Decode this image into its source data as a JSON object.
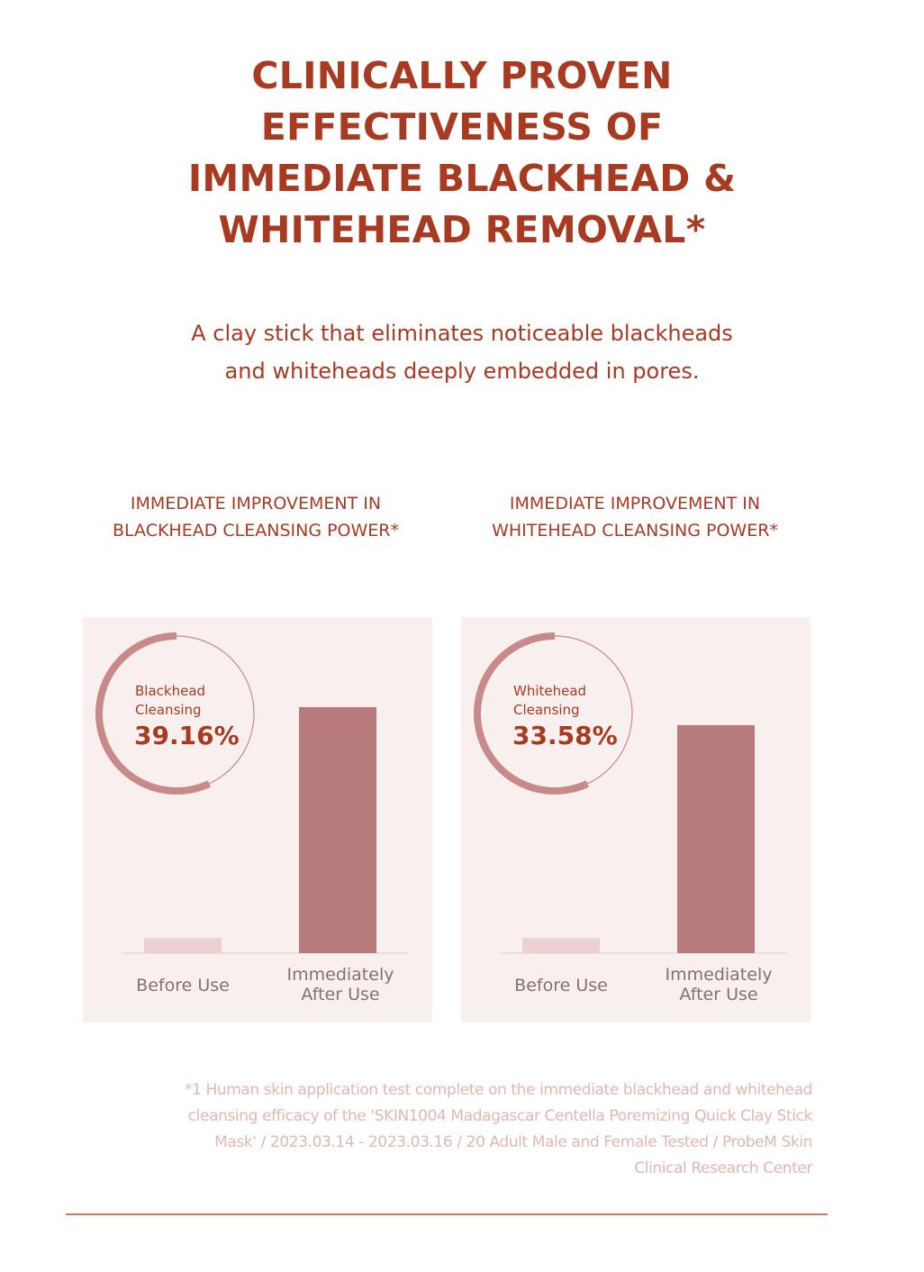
{
  "headline": {
    "lines": [
      "CLINICALLY PROVEN",
      "EFFECTIVENESS OF",
      "IMMEDIATE BLACKHEAD &",
      "WHITEHEAD REMOVAL*"
    ]
  },
  "subhead": {
    "lines": [
      "A clay stick that eliminates noticeable blackheads",
      "and whiteheads deeply embedded in pores."
    ]
  },
  "colors": {
    "accent": "#a83a22",
    "panel_bg": "#f8f0ef",
    "bar_after": "#b87b7b",
    "bar_before": "#ecd1d1",
    "ring": "#c98989",
    "footnote": "#e3b7b1",
    "rule": "#d9775e"
  },
  "chart_data": [
    {
      "type": "bar",
      "title_lines": [
        "IMMEDIATE IMPROVEMENT IN",
        "BLACKHEAD CLEANSING POWER*"
      ],
      "categories": [
        "Before Use",
        "Immediately After Use"
      ],
      "category_lines": [
        [
          "Before Use"
        ],
        [
          "Immediately",
          "After Use"
        ]
      ],
      "values": [
        0.05,
        0.82
      ],
      "ylim": [
        0,
        1
      ],
      "badge": {
        "label_lines": [
          "Blackhead",
          "Cleansing"
        ],
        "value_text": "39.16%",
        "value": 39.16
      }
    },
    {
      "type": "bar",
      "title_lines": [
        "IMMEDIATE IMPROVEMENT IN",
        "WHITEHEAD CLEANSING POWER*"
      ],
      "categories": [
        "Before Use",
        "Immediately After Use"
      ],
      "category_lines": [
        [
          "Before Use"
        ],
        [
          "Immediately",
          "After Use"
        ]
      ],
      "values": [
        0.05,
        0.76
      ],
      "ylim": [
        0,
        1
      ],
      "badge": {
        "label_lines": [
          "Whitehead",
          "Cleansing"
        ],
        "value_text": "33.58%",
        "value": 33.58
      }
    }
  ],
  "footnote": {
    "lines": [
      "*1 Human skin application test complete on the immediate blackhead and whitehead",
      "cleansing efficacy of the 'SKIN1004 Madagascar Centella Poremizing Quick Clay Stick",
      "Mask' / 2023.03.14 - 2023.03.16 / 20 Adult Male and Female Tested / ProbeM Skin",
      "Clinical Research Center"
    ]
  }
}
